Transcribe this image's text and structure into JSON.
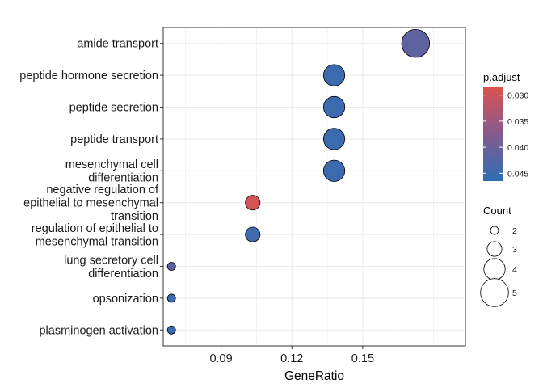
{
  "chart_data": {
    "type": "scatter",
    "xlabel": "GeneRatio",
    "xlim": [
      0.0655,
      0.1935
    ],
    "xticks": [
      0.09,
      0.12,
      0.15
    ],
    "xtick_labels": [
      "0.09",
      "0.12",
      "0.15"
    ],
    "grid": true,
    "legend_position": "right",
    "categories": [
      "amide transport",
      "peptide hormone secretion",
      "peptide secretion",
      "peptide transport",
      "mesenchymal cell\ndifferentiation",
      "negative regulation of\nepithelial to mesenchymal\ntransition",
      "regulation of epithelial to\nmesenchymal transition",
      "lung secretory cell\ndifferentiation",
      "opsonization",
      "plasminogen activation"
    ],
    "points": [
      {
        "category": "amide transport",
        "x": 0.1724,
        "count": 5,
        "p_adjust": 0.0415
      },
      {
        "category": "peptide hormone secretion",
        "x": 0.1379,
        "count": 4,
        "p_adjust": 0.0452
      },
      {
        "category": "peptide secretion",
        "x": 0.1379,
        "count": 4,
        "p_adjust": 0.0452
      },
      {
        "category": "peptide transport",
        "x": 0.1379,
        "count": 4,
        "p_adjust": 0.0452
      },
      {
        "category": "mesenchymal cell\ndifferentiation",
        "x": 0.1379,
        "count": 4,
        "p_adjust": 0.0452
      },
      {
        "category": "negative regulation of\nepithelial to mesenchymal\ntransition",
        "x": 0.1034,
        "count": 3,
        "p_adjust": 0.0292
      },
      {
        "category": "regulation of epithelial to\nmesenchymal transition",
        "x": 0.1034,
        "count": 3,
        "p_adjust": 0.0445
      },
      {
        "category": "lung secretory cell\ndifferentiation",
        "x": 0.069,
        "count": 2,
        "p_adjust": 0.0415
      },
      {
        "category": "opsonization",
        "x": 0.069,
        "count": 2,
        "p_adjust": 0.0452
      },
      {
        "category": "plasminogen activation",
        "x": 0.069,
        "count": 2,
        "p_adjust": 0.0452
      }
    ],
    "color_legend": {
      "title": "p.adjust",
      "range": [
        0.0285,
        0.0465
      ],
      "breaks": [
        0.03,
        0.035,
        0.04,
        0.045
      ],
      "labels": [
        "0.030",
        "0.035",
        "0.040",
        "0.045"
      ],
      "low_color": "#d9534f",
      "high_color": "#2e6db4"
    },
    "size_legend": {
      "title": "Count",
      "values": [
        2,
        3,
        4,
        5
      ],
      "labels": [
        "2",
        "3",
        "4",
        "5"
      ]
    }
  }
}
